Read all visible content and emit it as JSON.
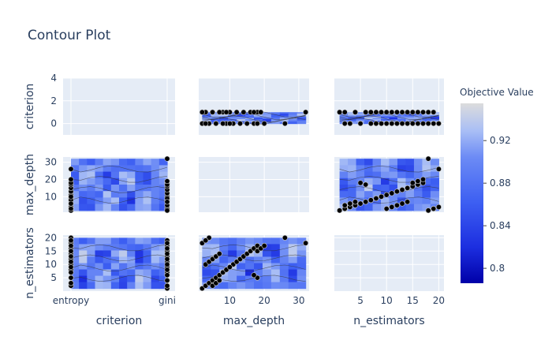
{
  "chart_data": {
    "type": "contour",
    "title": "Contour Plot",
    "colorbar": {
      "title": "Objective Value",
      "range": [
        0.786,
        0.955
      ],
      "ticks": [
        0.8,
        0.84,
        0.88,
        0.92
      ],
      "tick_labels": [
        "0.8",
        "0.84",
        "0.88",
        "0.92"
      ],
      "colors": [
        "#0000a8",
        "#1c2ee0",
        "#3d5ff2",
        "#6c8bf5",
        "#aabff5",
        "#dcdcdc"
      ]
    },
    "params": [
      "criterion",
      "max_depth",
      "n_estimators"
    ],
    "axis_labels": {
      "x": [
        "criterion",
        "max_depth",
        "n_estimators"
      ],
      "y": [
        "criterion",
        "max_depth",
        "n_estimators"
      ]
    },
    "criterion_categories": [
      "entropy",
      "gini"
    ],
    "ticks": {
      "criterion_y": [
        0,
        2,
        4
      ],
      "max_depth_x": [
        10,
        20,
        30
      ],
      "max_depth_y": [
        10,
        20,
        30
      ],
      "n_estimators_x": [
        5,
        10,
        15,
        20
      ],
      "n_estimators_y": [
        5,
        10,
        15,
        20
      ]
    },
    "ranges": {
      "criterion": [
        -1,
        4
      ],
      "max_depth": [
        1,
        33
      ],
      "n_estimators": [
        0,
        21
      ]
    },
    "trials": {
      "criterion": [
        "gini",
        "entropy",
        "gini",
        "entropy",
        "entropy",
        "gini",
        "entropy",
        "gini",
        "gini",
        "entropy",
        "gini",
        "entropy",
        "gini",
        "entropy",
        "gini",
        "entropy",
        "gini",
        "entropy",
        "gini",
        "entropy",
        "gini",
        "entropy",
        "gini",
        "entropy",
        "gini",
        "entropy",
        "gini",
        "entropy",
        "gini",
        "entropy",
        "gini",
        "entropy",
        "gini",
        "entropy",
        "gini",
        "entropy",
        "gini",
        "entropy",
        "gini",
        "entropy"
      ],
      "max_depth": [
        32,
        26,
        2,
        3,
        4,
        5,
        6,
        7,
        8,
        9,
        10,
        11,
        12,
        13,
        14,
        15,
        16,
        17,
        18,
        2,
        3,
        4,
        5,
        6,
        7,
        18,
        17,
        8,
        9,
        10,
        3,
        4,
        5,
        6,
        7,
        18,
        19,
        20,
        2,
        3
      ],
      "n_estimators": [
        18,
        20,
        1,
        2,
        3,
        4,
        5,
        6,
        7,
        8,
        9,
        10,
        11,
        12,
        13,
        14,
        15,
        16,
        17,
        18,
        19,
        20,
        2,
        3,
        4,
        5,
        6,
        7,
        8,
        9,
        10,
        11,
        12,
        13,
        14,
        15,
        16,
        17,
        18,
        19
      ]
    }
  }
}
